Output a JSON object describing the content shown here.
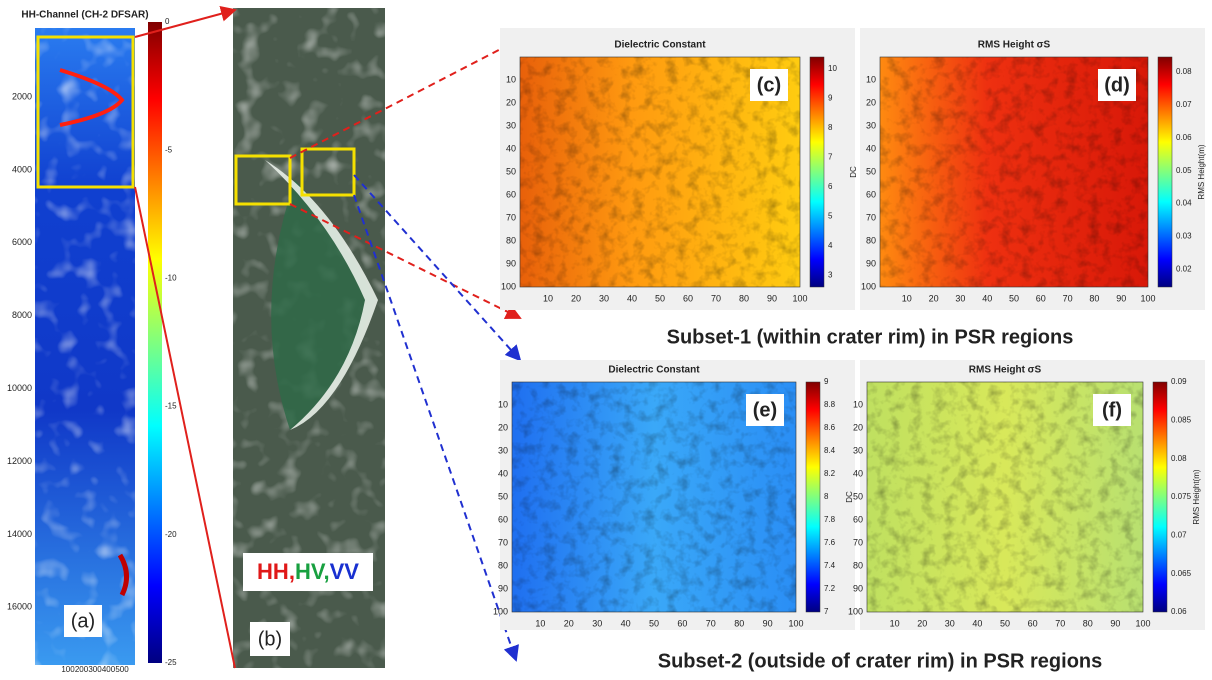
{
  "panel_a": {
    "title": "HH-Channel (CH-2 DFSAR)",
    "label": "(a)",
    "yticks": [
      2000,
      4000,
      6000,
      8000,
      10000,
      12000,
      14000,
      16000
    ],
    "xticks": [
      100,
      200,
      300,
      400,
      500
    ],
    "colorbar_ticks": [
      0,
      -5,
      -10,
      -15,
      -20,
      -25
    ]
  },
  "panel_b": {
    "label": "(b)",
    "composite": {
      "hh": "HH",
      "sep1": ",",
      "hv": "HV",
      "sep2": ",",
      "vv": "VV"
    }
  },
  "panel_c": {
    "title": "Dielectric Constant",
    "label": "(c)",
    "colorbar_label": "DC",
    "yticks": [
      10,
      20,
      30,
      40,
      50,
      60,
      70,
      80,
      90,
      100
    ],
    "xticks": [
      10,
      20,
      30,
      40,
      50,
      60,
      70,
      80,
      90,
      100
    ],
    "colorbar_ticks": [
      10,
      9,
      8,
      7,
      6,
      5,
      4,
      3
    ]
  },
  "panel_d": {
    "title": "RMS Height σS",
    "label": "(d)",
    "colorbar_label": "RMS Height(m)",
    "yticks": [
      10,
      20,
      30,
      40,
      50,
      60,
      70,
      80,
      90,
      100
    ],
    "xticks": [
      10,
      20,
      30,
      40,
      50,
      60,
      70,
      80,
      90,
      100
    ],
    "colorbar_ticks": [
      0.08,
      0.07,
      0.06,
      0.05,
      0.04,
      0.03,
      0.02
    ]
  },
  "caption_1": "Subset-1 (within crater rim) in PSR regions",
  "panel_e": {
    "title": "Dielectric Constant",
    "label": "(e)",
    "colorbar_label": "DC",
    "yticks": [
      10,
      20,
      30,
      40,
      50,
      60,
      70,
      80,
      90,
      100
    ],
    "xticks": [
      10,
      20,
      30,
      40,
      50,
      60,
      70,
      80,
      90,
      100
    ],
    "colorbar_ticks": [
      9,
      8.8,
      8.6,
      8.4,
      8.2,
      8,
      7.8,
      7.6,
      7.4,
      7.2,
      7
    ]
  },
  "panel_f": {
    "title": "RMS Height σS",
    "label": "(f)",
    "colorbar_label": "RMS Height(m)",
    "yticks": [
      10,
      20,
      30,
      40,
      50,
      60,
      70,
      80,
      90,
      100
    ],
    "xticks": [
      10,
      20,
      30,
      40,
      50,
      60,
      70,
      80,
      90,
      100
    ],
    "colorbar_ticks": [
      0.09,
      0.085,
      0.08,
      0.075,
      0.07,
      0.065,
      0.06
    ]
  },
  "caption_2": "Subset-2 (outside of crater rim) in PSR regions"
}
